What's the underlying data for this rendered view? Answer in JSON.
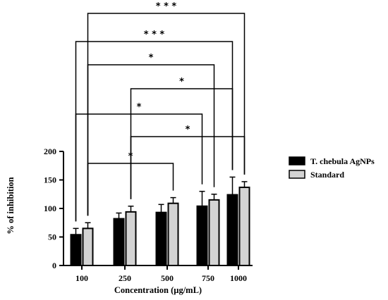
{
  "chart_data": {
    "type": "bar",
    "categories": [
      "100",
      "250",
      "500",
      "750",
      "1000"
    ],
    "series": [
      {
        "name": "T. chebula AgNPs",
        "values": [
          54,
          82,
          93,
          104,
          124
        ],
        "errors": [
          11,
          10,
          14,
          26,
          31
        ],
        "color": "#000000"
      },
      {
        "name": "Standard",
        "values": [
          65,
          94,
          109,
          115,
          137
        ],
        "errors": [
          10,
          10,
          10,
          10,
          10
        ],
        "color": "#d3d3d3"
      }
    ],
    "xlabel": "Concentration (µg/mL)",
    "ylabel": "% of inhibition",
    "ylim": [
      0,
      200
    ],
    "yticks": [
      0,
      50,
      100,
      150,
      200
    ],
    "legend_position": "right",
    "significance": [
      {
        "label": "* * *",
        "from_group": 0,
        "from_series": 1,
        "to_group": 4,
        "to_series": 1
      },
      {
        "label": "* * *",
        "from_group": 0,
        "from_series": 0,
        "to_group": 4,
        "to_series": 0
      },
      {
        "label": "*",
        "from_group": 0,
        "from_series": 1,
        "to_group": 3,
        "to_series": 1
      },
      {
        "label": "*",
        "from_group": 1,
        "from_series": 1,
        "to_group": 4,
        "to_series": 0
      },
      {
        "label": "*",
        "from_group": 0,
        "from_series": 0,
        "to_group": 3,
        "to_series": 0
      },
      {
        "label": "*",
        "from_group": 1,
        "from_series": 1,
        "to_group": 4,
        "to_series": 1
      },
      {
        "label": "*",
        "from_group": 0,
        "from_series": 1,
        "to_group": 2,
        "to_series": 1
      }
    ]
  }
}
